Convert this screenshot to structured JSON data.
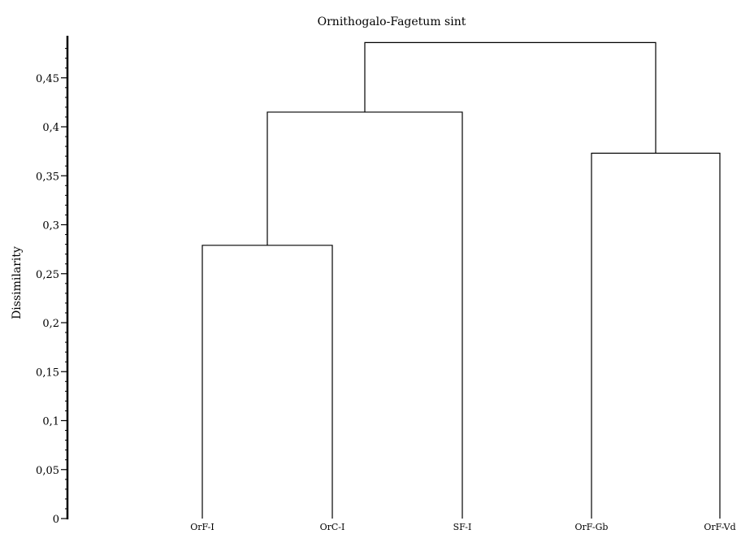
{
  "chart_data": {
    "type": "dendrogram",
    "title": "Ornithogalo-Fagetum sint",
    "ylabel": "Dissimilarity",
    "ylim": [
      0,
      0.49
    ],
    "y_ticks": [
      0,
      0.05,
      0.1,
      0.15,
      0.2,
      0.25,
      0.3,
      0.35,
      0.4,
      0.45
    ],
    "y_tick_labels": [
      "0",
      "0,05",
      "0,1",
      "0,15",
      "0,2",
      "0,25",
      "0,3",
      "0,35",
      "0,4",
      "0,45"
    ],
    "leaves": [
      "OrF-I",
      "OrC-I",
      "SF-I",
      "OrF-Gb",
      "OrF-Vd"
    ],
    "merges": [
      {
        "left": "OrF-I",
        "right": "OrC-I",
        "height": 0.279,
        "id": "c1"
      },
      {
        "left": "OrF-Gb",
        "right": "OrF-Vd",
        "height": 0.373,
        "id": "c2"
      },
      {
        "left": "c1",
        "right": "SF-I",
        "height": 0.415,
        "id": "c3"
      },
      {
        "left": "c3",
        "right": "c2",
        "height": 0.486,
        "id": "c4"
      }
    ]
  }
}
